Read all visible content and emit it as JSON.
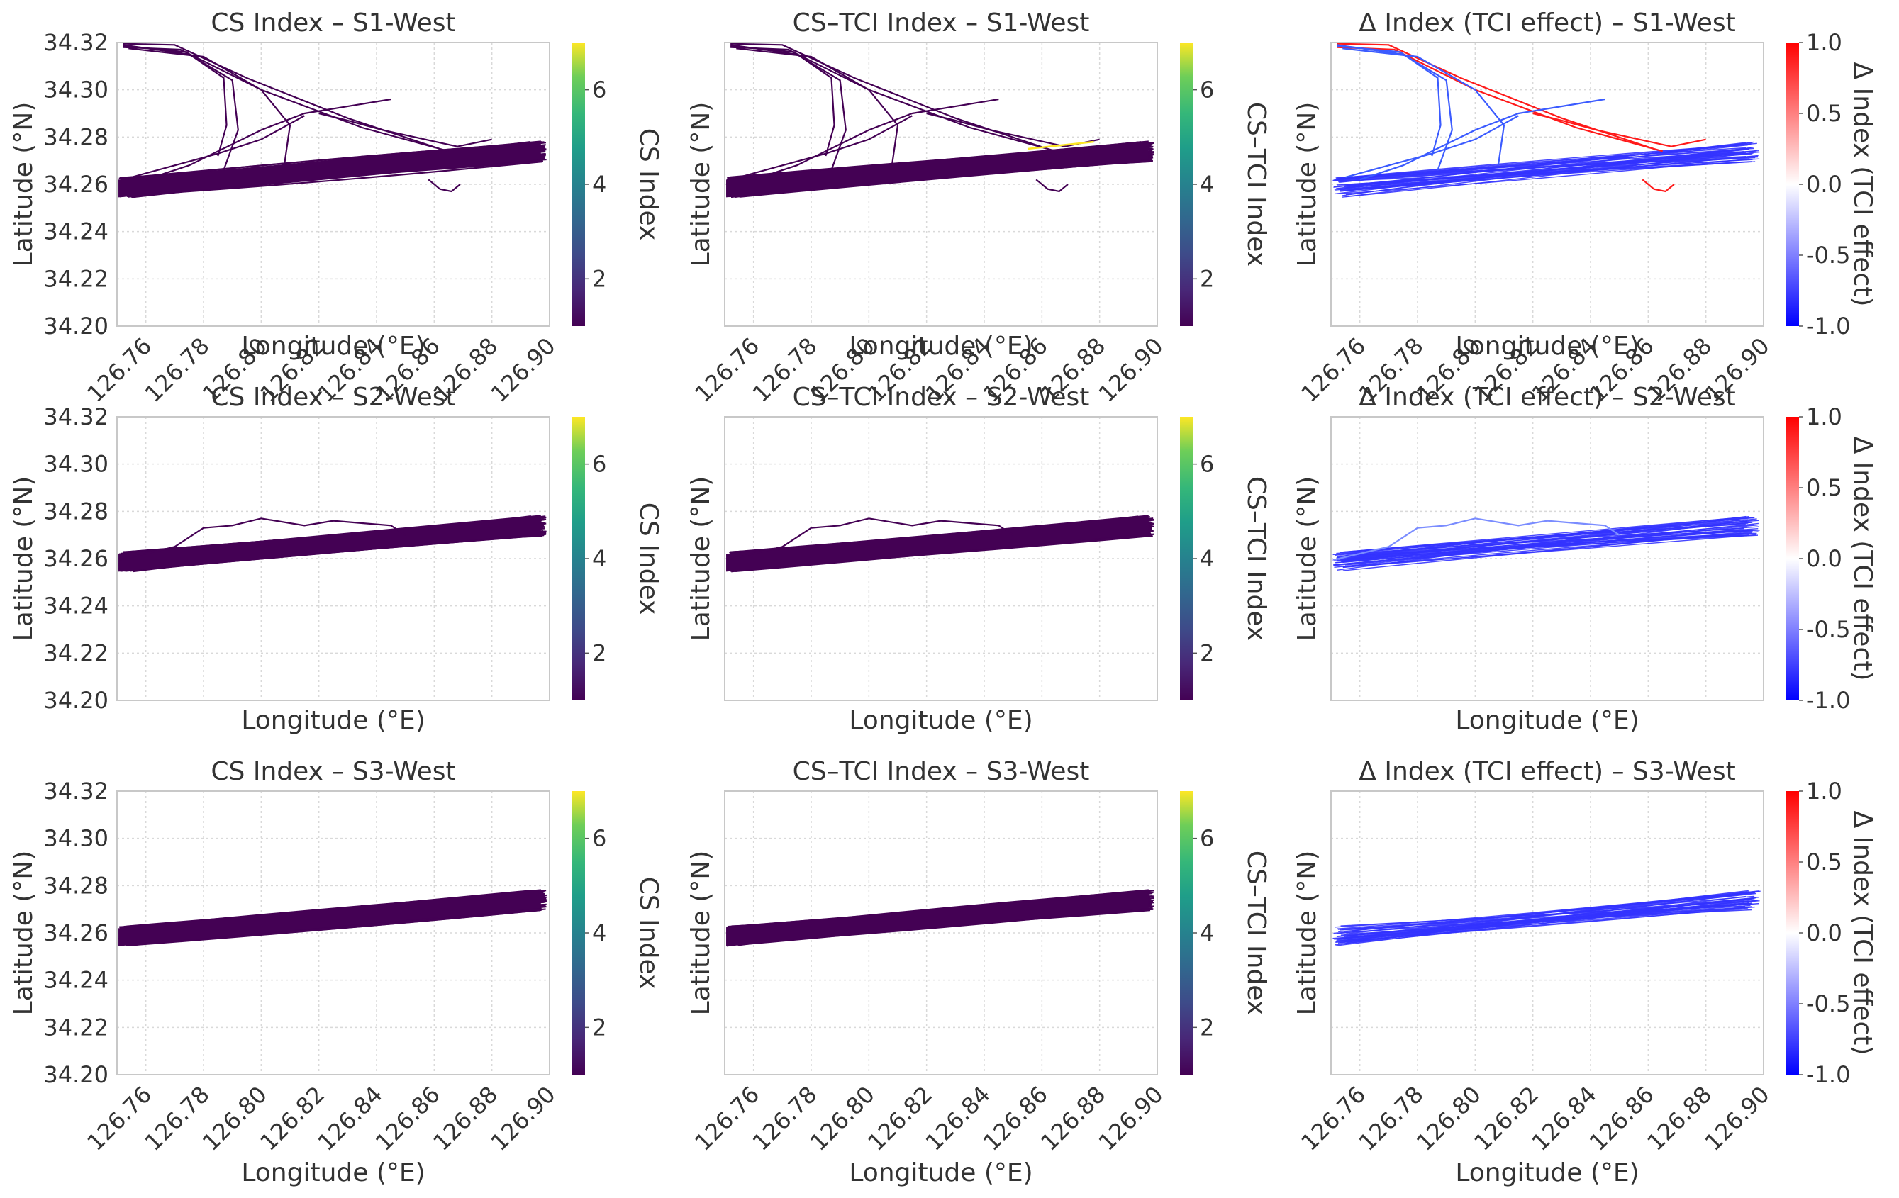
{
  "figure": {
    "layout": "3x3 grid of map-track panels with colorbars",
    "rows": [
      "S1-West",
      "S2-West",
      "S3-West"
    ]
  },
  "chart_data": [
    {
      "type": "line",
      "panel_id": "cs-s1",
      "title": "CS Index – S1-West",
      "xlabel": "Longitude (°E)",
      "ylabel": "Latitude (°N)",
      "xlim": [
        126.75,
        126.9
      ],
      "ylim": [
        34.2,
        34.32
      ],
      "xticks": [
        "126.76",
        "126.78",
        "126.80",
        "126.82",
        "126.84",
        "126.86",
        "126.88",
        "126.90"
      ],
      "yticks": [
        "34.20",
        "34.22",
        "34.24",
        "34.26",
        "34.28",
        "34.30",
        "34.32"
      ],
      "colorbar": {
        "label": "CS Index",
        "cmap": "viridis",
        "ticks": [
          "2",
          "4",
          "6"
        ],
        "range": [
          1,
          7
        ]
      },
      "color_value": 1.1,
      "tracks": "band_with_northern_branches"
    },
    {
      "type": "line",
      "panel_id": "cstci-s1",
      "title": "CS–TCI Index – S1-West",
      "xlabel": "Longitude (°E)",
      "ylabel": "Latitude (°N)",
      "xlim": [
        126.75,
        126.9
      ],
      "ylim": [
        34.2,
        34.32
      ],
      "xticks": [
        "126.76",
        "126.78",
        "126.80",
        "126.82",
        "126.84",
        "126.86",
        "126.88",
        "126.90"
      ],
      "yticks": [],
      "colorbar": {
        "label": "CS–TCI Index",
        "cmap": "viridis",
        "ticks": [
          "2",
          "4",
          "6"
        ],
        "range": [
          1,
          7
        ]
      },
      "color_value": 1.1,
      "tracks": "band_with_northern_branches"
    },
    {
      "type": "line",
      "panel_id": "delta-s1",
      "title": "Δ Index (TCI effect) – S1-West",
      "xlabel": "Longitude (°E)",
      "ylabel": "Latitude (°N)",
      "xlim": [
        126.75,
        126.9
      ],
      "ylim": [
        34.2,
        34.32
      ],
      "xticks": [
        "126.76",
        "126.78",
        "126.80",
        "126.82",
        "126.84",
        "126.86",
        "126.88",
        "126.90"
      ],
      "yticks": [],
      "colorbar": {
        "label": "Δ Index (TCI effect)",
        "cmap": "bwr",
        "ticks": [
          "-1.0",
          "-0.5",
          "0.0",
          "0.5",
          "1.0"
        ],
        "range": [
          -1,
          1
        ]
      },
      "color_value": -0.8,
      "tracks": "band_with_northern_branches"
    },
    {
      "type": "line",
      "panel_id": "cs-s2",
      "title": "CS Index – S2-West",
      "xlabel": "Longitude (°E)",
      "ylabel": "Latitude (°N)",
      "xlim": [
        126.75,
        126.9
      ],
      "ylim": [
        34.2,
        34.32
      ],
      "xticks": [],
      "yticks": [
        "34.20",
        "34.22",
        "34.24",
        "34.26",
        "34.28",
        "34.30",
        "34.32"
      ],
      "colorbar": {
        "label": "CS Index",
        "cmap": "viridis",
        "ticks": [
          "2",
          "4",
          "6"
        ],
        "range": [
          1,
          7
        ]
      },
      "color_value": 1.1,
      "tracks": "band_with_single_arc"
    },
    {
      "type": "line",
      "panel_id": "cstci-s2",
      "title": "CS–TCI Index – S2-West",
      "xlabel": "Longitude (°E)",
      "ylabel": "Latitude (°N)",
      "xlim": [
        126.75,
        126.9
      ],
      "ylim": [
        34.2,
        34.32
      ],
      "xticks": [],
      "yticks": [],
      "colorbar": {
        "label": "CS–TCI Index",
        "cmap": "viridis",
        "ticks": [
          "2",
          "4",
          "6"
        ],
        "range": [
          1,
          7
        ]
      },
      "color_value": 1.1,
      "tracks": "band_with_single_arc"
    },
    {
      "type": "line",
      "panel_id": "delta-s2",
      "title": "Δ Index (TCI effect) – S2-West",
      "xlabel": "Longitude (°E)",
      "ylabel": "Latitude (°N)",
      "xlim": [
        126.75,
        126.9
      ],
      "ylim": [
        34.2,
        34.32
      ],
      "xticks": [],
      "yticks": [],
      "colorbar": {
        "label": "Δ Index (TCI effect)",
        "cmap": "bwr",
        "ticks": [
          "-1.0",
          "-0.5",
          "0.0",
          "0.5",
          "1.0"
        ],
        "range": [
          -1,
          1
        ]
      },
      "color_value": -0.8,
      "tracks": "band_with_single_arc"
    },
    {
      "type": "line",
      "panel_id": "cs-s3",
      "title": "CS Index – S3-West",
      "xlabel": "Longitude (°E)",
      "ylabel": "Latitude (°N)",
      "xlim": [
        126.75,
        126.9
      ],
      "ylim": [
        34.2,
        34.32
      ],
      "xticks": [
        "126.76",
        "126.78",
        "126.80",
        "126.82",
        "126.84",
        "126.86",
        "126.88",
        "126.90"
      ],
      "yticks": [
        "34.20",
        "34.22",
        "34.24",
        "34.26",
        "34.28",
        "34.30",
        "34.32"
      ],
      "colorbar": {
        "label": "CS Index",
        "cmap": "viridis",
        "ticks": [
          "2",
          "4",
          "6"
        ],
        "range": [
          1,
          7
        ]
      },
      "color_value": 1.1,
      "tracks": "band_only"
    },
    {
      "type": "line",
      "panel_id": "cstci-s3",
      "title": "CS–TCI Index – S3-West",
      "xlabel": "Longitude (°E)",
      "ylabel": "Latitude (°N)",
      "xlim": [
        126.75,
        126.9
      ],
      "ylim": [
        34.2,
        34.32
      ],
      "xticks": [
        "126.76",
        "126.78",
        "126.80",
        "126.82",
        "126.84",
        "126.86",
        "126.88",
        "126.90"
      ],
      "yticks": [],
      "colorbar": {
        "label": "CS–TCI Index",
        "cmap": "viridis",
        "ticks": [
          "2",
          "4",
          "6"
        ],
        "range": [
          1,
          7
        ]
      },
      "color_value": 1.1,
      "tracks": "band_only"
    },
    {
      "type": "line",
      "panel_id": "delta-s3",
      "title": "Δ Index (TCI effect) – S3-West",
      "xlabel": "Longitude (°E)",
      "ylabel": "Latitude (°N)",
      "xlim": [
        126.75,
        126.9
      ],
      "ylim": [
        34.2,
        34.32
      ],
      "xticks": [
        "126.76",
        "126.78",
        "126.80",
        "126.82",
        "126.84",
        "126.86",
        "126.88",
        "126.90"
      ],
      "yticks": [],
      "colorbar": {
        "label": "Δ Index (TCI effect)",
        "cmap": "bwr",
        "ticks": [
          "-1.0",
          "-0.5",
          "0.0",
          "0.5",
          "1.0"
        ],
        "range": [
          -1,
          1
        ]
      },
      "color_value": -0.8,
      "tracks": "band_only"
    }
  ]
}
